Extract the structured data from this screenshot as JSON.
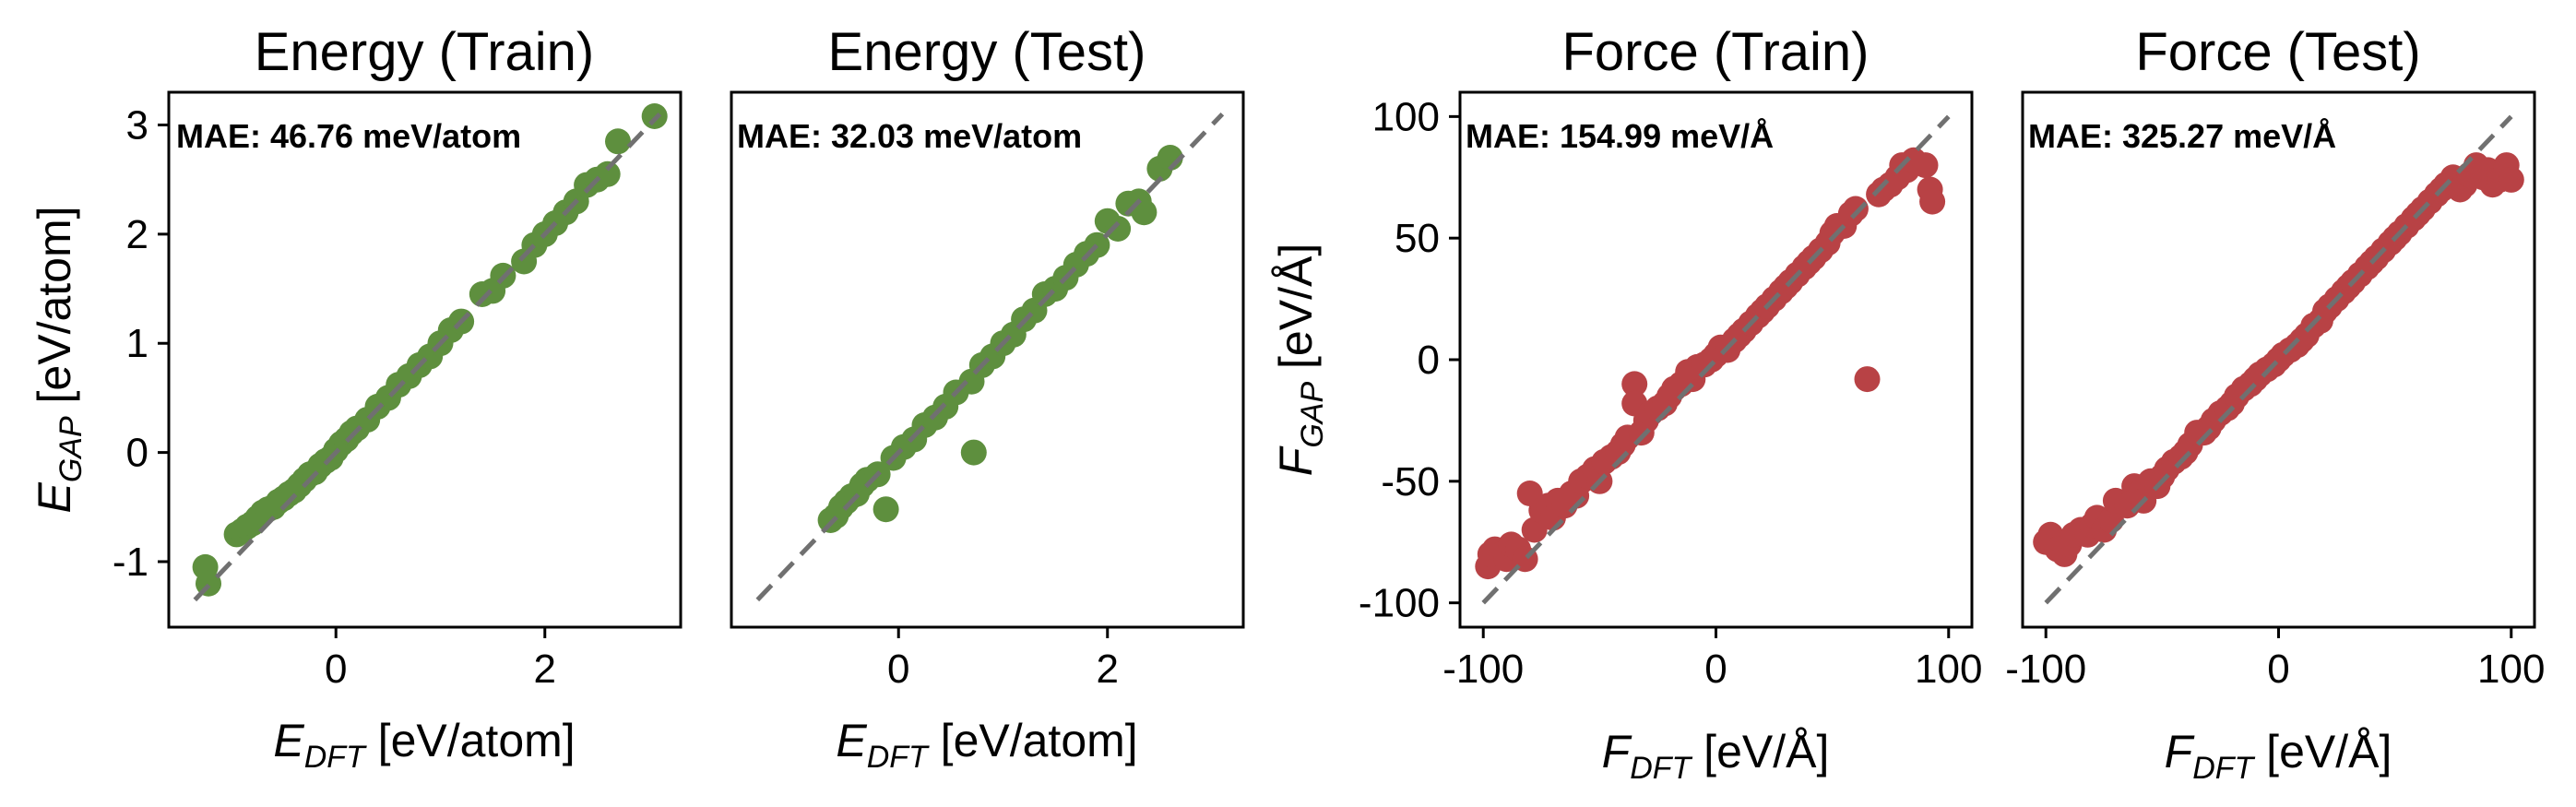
{
  "chart_data": [
    {
      "type": "scatter",
      "title": "Energy (Train)",
      "xlabel": "E_DFT [eV/atom]",
      "ylabel": "E_GAP [eV/atom]",
      "xlim": [
        -1.6,
        3.3
      ],
      "ylim": [
        -1.6,
        3.3
      ],
      "xticks": [
        0,
        2
      ],
      "xtick_labels": [
        "0",
        "2"
      ],
      "yticks": [
        -1,
        0,
        1,
        2,
        3
      ],
      "ytick_labels": [
        "-1",
        "0",
        "1",
        "2",
        "3"
      ],
      "show_yticks": true,
      "annotation": "MAE: 46.76 meV/atom",
      "color": "#5e8f3e",
      "reference_line": [
        -1.35,
        3.1
      ],
      "x": [
        -1.25,
        -1.22,
        -0.95,
        -0.9,
        -0.85,
        -0.8,
        -0.75,
        -0.7,
        -0.65,
        -0.6,
        -0.55,
        -0.5,
        -0.45,
        -0.4,
        -0.35,
        -0.3,
        -0.25,
        -0.2,
        -0.15,
        -0.1,
        -0.05,
        0.0,
        0.05,
        0.1,
        0.15,
        0.2,
        0.3,
        0.4,
        0.5,
        0.6,
        0.7,
        0.8,
        0.9,
        1.0,
        1.1,
        1.2,
        1.4,
        1.5,
        1.6,
        1.8,
        1.9,
        2.0,
        2.1,
        2.2,
        2.3,
        2.4,
        2.5,
        2.6,
        2.7,
        3.05
      ],
      "y": [
        -1.05,
        -1.2,
        -0.75,
        -0.72,
        -0.68,
        -0.65,
        -0.6,
        -0.55,
        -0.52,
        -0.5,
        -0.45,
        -0.42,
        -0.38,
        -0.35,
        -0.3,
        -0.25,
        -0.2,
        -0.18,
        -0.12,
        -0.08,
        -0.05,
        0.02,
        0.08,
        0.12,
        0.18,
        0.22,
        0.3,
        0.42,
        0.5,
        0.62,
        0.7,
        0.8,
        0.88,
        1.0,
        1.12,
        1.2,
        1.45,
        1.48,
        1.62,
        1.75,
        1.9,
        2.0,
        2.1,
        2.2,
        2.3,
        2.45,
        2.5,
        2.55,
        2.85,
        3.08
      ]
    },
    {
      "type": "scatter",
      "title": "Energy (Test)",
      "xlabel": "E_DFT [eV/atom]",
      "ylabel": "",
      "xlim": [
        -1.6,
        3.3
      ],
      "ylim": [
        -1.6,
        3.3
      ],
      "xticks": [
        0,
        2
      ],
      "xtick_labels": [
        "0",
        "2"
      ],
      "yticks": [],
      "ytick_labels": [],
      "show_yticks": false,
      "annotation": "MAE: 32.03 meV/atom",
      "color": "#5e8f3e",
      "reference_line": [
        -1.35,
        3.1
      ],
      "x": [
        -0.65,
        -0.6,
        -0.55,
        -0.5,
        -0.45,
        -0.4,
        -0.35,
        -0.3,
        -0.2,
        -0.12,
        -0.05,
        0.05,
        0.15,
        0.25,
        0.35,
        0.45,
        0.55,
        0.7,
        0.72,
        0.8,
        0.9,
        1.0,
        1.1,
        1.2,
        1.3,
        1.4,
        1.5,
        1.6,
        1.7,
        1.8,
        1.9,
        2.0,
        2.1,
        2.2,
        2.3,
        2.35,
        2.5,
        2.6
      ],
      "y": [
        -0.62,
        -0.58,
        -0.5,
        -0.45,
        -0.4,
        -0.38,
        -0.3,
        -0.25,
        -0.2,
        -0.52,
        -0.05,
        0.05,
        0.12,
        0.25,
        0.32,
        0.42,
        0.55,
        0.65,
        0.0,
        0.8,
        0.88,
        1.0,
        1.08,
        1.22,
        1.3,
        1.45,
        1.5,
        1.6,
        1.72,
        1.82,
        1.9,
        2.12,
        2.05,
        2.28,
        2.3,
        2.2,
        2.6,
        2.7
      ]
    },
    {
      "type": "scatter",
      "title": "Force (Train)",
      "xlabel": "F_DFT [eV/Å]",
      "ylabel": "F_GAP [eV/Å]",
      "xlim": [
        -110,
        110
      ],
      "ylim": [
        -110,
        110
      ],
      "xticks": [
        -100,
        0,
        100
      ],
      "xtick_labels": [
        "-100",
        "0",
        "100"
      ],
      "yticks": [
        -100,
        -50,
        0,
        50,
        100
      ],
      "ytick_labels": [
        "-100",
        "-50",
        "0",
        "50",
        "100"
      ],
      "show_yticks": true,
      "annotation": "MAE: 154.99 meV/Å",
      "color": "#b84245",
      "reference_line": [
        -100,
        100
      ],
      "x": [
        -98,
        -97,
        -95,
        -92,
        -90,
        -88,
        -85,
        -82,
        -80,
        -78,
        -75,
        -72,
        -70,
        -68,
        -65,
        -62,
        -60,
        -58,
        -55,
        -52,
        -50,
        -48,
        -45,
        -42,
        -40,
        -38,
        -35,
        -35,
        -32,
        -30,
        -28,
        -25,
        -22,
        -20,
        -18,
        -15,
        -12,
        -10,
        -8,
        -5,
        -2,
        0,
        2,
        5,
        8,
        10,
        12,
        15,
        18,
        20,
        22,
        25,
        28,
        30,
        32,
        35,
        38,
        40,
        42,
        45,
        48,
        50,
        52,
        55,
        58,
        60,
        65,
        70,
        72,
        75,
        78,
        80,
        82,
        85,
        90,
        92,
        93
      ],
      "y": [
        -85,
        -80,
        -78,
        -80,
        -82,
        -76,
        -78,
        -82,
        -55,
        -70,
        -62,
        -60,
        -65,
        -58,
        -60,
        -55,
        -56,
        -50,
        -48,
        -45,
        -50,
        -42,
        -40,
        -38,
        -35,
        -32,
        -10,
        -18,
        -30,
        -25,
        -22,
        -20,
        -18,
        -15,
        -12,
        -10,
        -5,
        -8,
        -3,
        -2,
        0,
        2,
        5,
        4,
        8,
        10,
        12,
        15,
        18,
        20,
        22,
        25,
        28,
        30,
        32,
        35,
        38,
        40,
        42,
        45,
        48,
        52,
        55,
        55,
        60,
        62,
        -8,
        68,
        70,
        72,
        75,
        80,
        78,
        82,
        80,
        70,
        65
      ]
    },
    {
      "type": "scatter",
      "title": "Force (Test)",
      "xlabel": "F_DFT [eV/Å]",
      "ylabel": "",
      "xlim": [
        -110,
        110
      ],
      "ylim": [
        -110,
        110
      ],
      "xticks": [
        -100,
        0,
        100
      ],
      "xtick_labels": [
        "-100",
        "0",
        "100"
      ],
      "yticks": [],
      "ytick_labels": [],
      "show_yticks": false,
      "annotation": "MAE: 325.27 meV/Å",
      "color": "#b84245",
      "reference_line": [
        -100,
        100
      ],
      "x": [
        -100,
        -98,
        -95,
        -92,
        -90,
        -88,
        -85,
        -82,
        -80,
        -78,
        -75,
        -72,
        -70,
        -65,
        -62,
        -60,
        -58,
        -55,
        -52,
        -50,
        -48,
        -45,
        -42,
        -40,
        -38,
        -35,
        -32,
        -30,
        -28,
        -25,
        -22,
        -20,
        -18,
        -15,
        -12,
        -10,
        -8,
        -5,
        -2,
        0,
        2,
        5,
        8,
        10,
        12,
        15,
        18,
        20,
        22,
        25,
        28,
        30,
        32,
        35,
        38,
        40,
        42,
        45,
        48,
        50,
        52,
        55,
        58,
        60,
        62,
        65,
        68,
        70,
        72,
        75,
        78,
        80,
        82,
        85,
        88,
        90,
        92,
        95,
        98,
        100
      ],
      "y": [
        -75,
        -72,
        -78,
        -80,
        -76,
        -72,
        -70,
        -72,
        -68,
        -65,
        -70,
        -66,
        -58,
        -60,
        -52,
        -55,
        -58,
        -50,
        -52,
        -48,
        -45,
        -42,
        -40,
        -38,
        -35,
        -30,
        -30,
        -28,
        -25,
        -22,
        -20,
        -18,
        -15,
        -12,
        -10,
        -8,
        -6,
        -4,
        -2,
        0,
        2,
        4,
        6,
        8,
        10,
        14,
        16,
        20,
        22,
        25,
        28,
        30,
        32,
        35,
        38,
        40,
        42,
        45,
        48,
        50,
        52,
        55,
        58,
        60,
        62,
        65,
        68,
        70,
        72,
        75,
        70,
        72,
        76,
        80,
        75,
        78,
        72,
        74,
        80,
        74
      ]
    }
  ]
}
